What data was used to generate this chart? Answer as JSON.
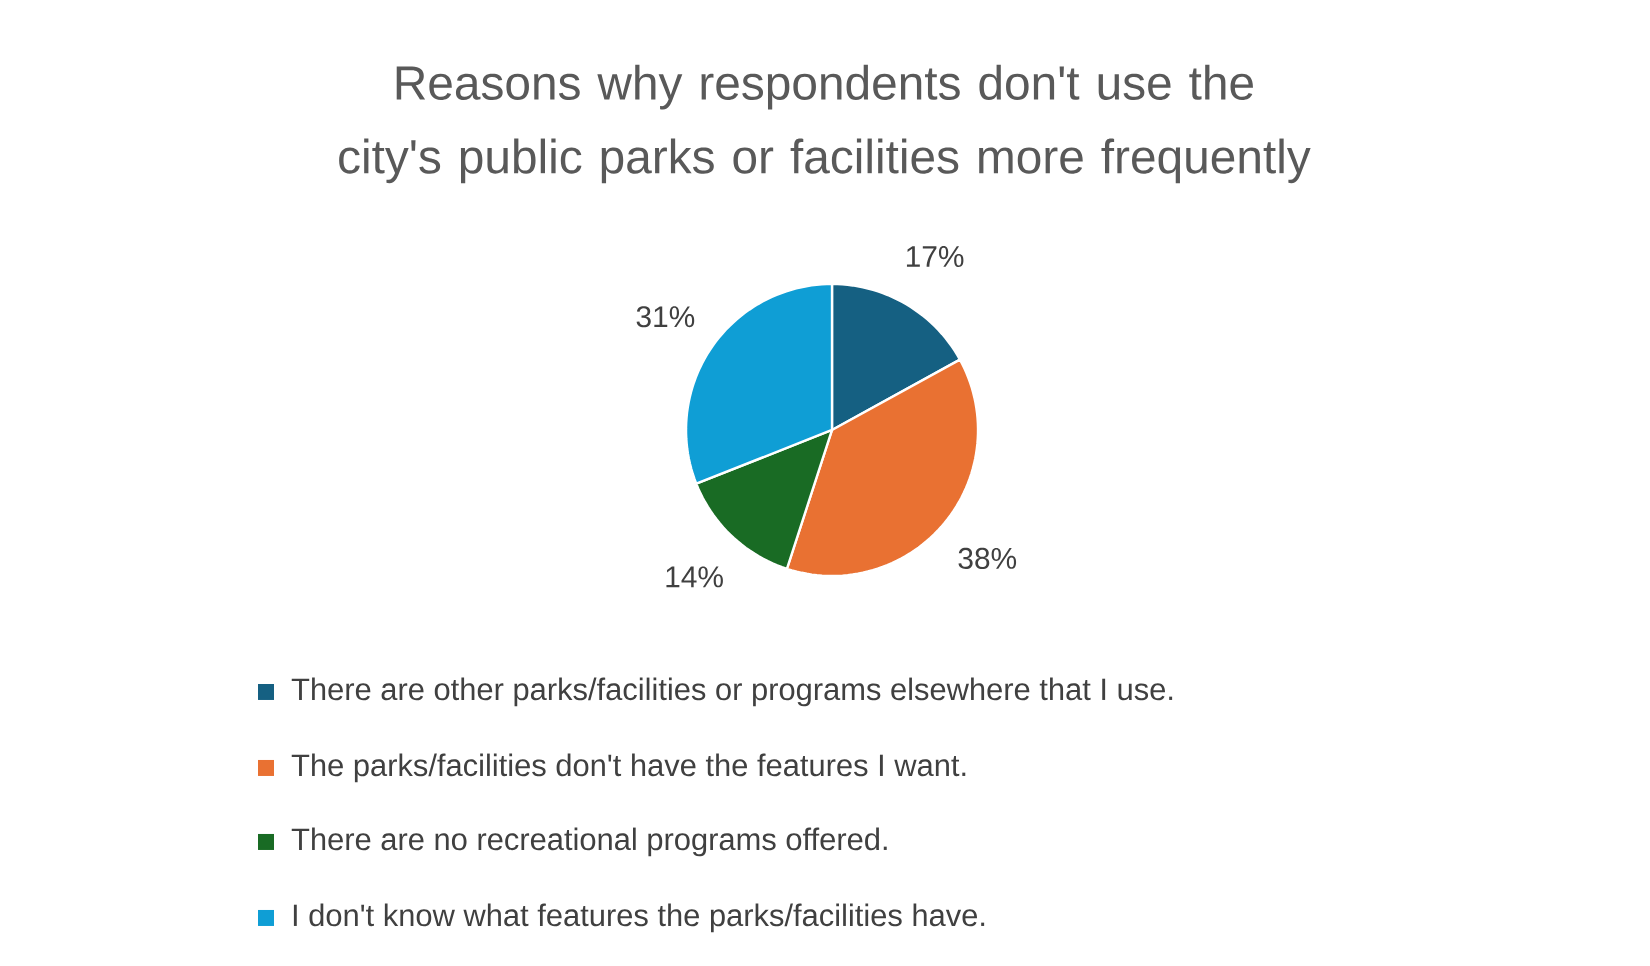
{
  "chart_data": {
    "type": "pie",
    "title": "Reasons why respondents don't use the city's public parks or facilities more frequently",
    "categories": [
      "There are other parks/facilities or programs elsewhere that I use.",
      "The parks/facilities don't have the features I want.",
      "There are no recreational programs offered.",
      "I don't know what features the parks/facilities have."
    ],
    "values": [
      17,
      38,
      14,
      31
    ],
    "value_labels": [
      "17%",
      "38%",
      "14%",
      "31%"
    ],
    "colors": [
      "#156082",
      "#e97132",
      "#196b24",
      "#0f9ed5"
    ],
    "legend": "bottom"
  }
}
